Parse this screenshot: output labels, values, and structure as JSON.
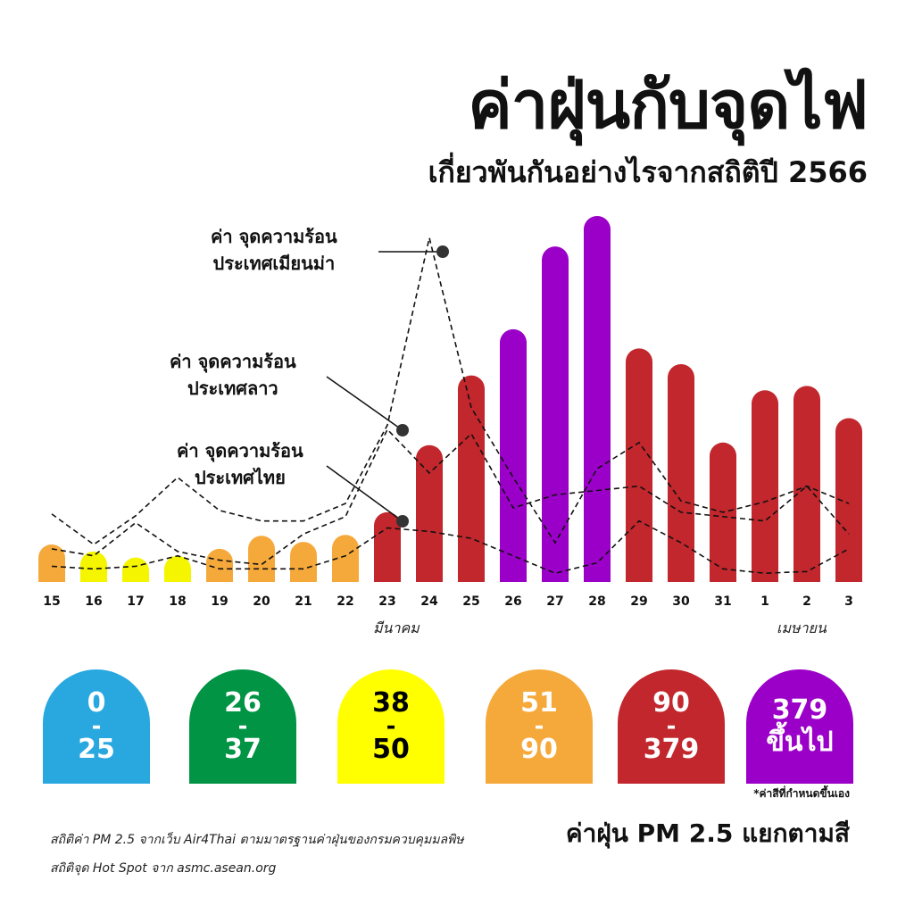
{
  "title": "ค่าฝุ่นกับจุดไฟ",
  "subtitle": "เกี่ยวพันกันอย่างไรจากสถิติปี 2566",
  "chart_data": {
    "type": "bar",
    "categories": [
      "15",
      "16",
      "17",
      "18",
      "19",
      "20",
      "21",
      "22",
      "23",
      "24",
      "25",
      "26",
      "27",
      "28",
      "29",
      "30",
      "31",
      "1",
      "2",
      "3"
    ],
    "months": [
      {
        "label": "มีนาคม",
        "after_index": 8
      },
      {
        "label": "เมษายน",
        "after_index": 19
      }
    ],
    "values": [
      43,
      35,
      28,
      30,
      38,
      53,
      46,
      54,
      80,
      157,
      237,
      290,
      385,
      420,
      268,
      250,
      160,
      220,
      225,
      188
    ],
    "bar_colors": [
      "#f6a93b",
      "#f5f500",
      "#f5f500",
      "#f5f500",
      "#f6a93b",
      "#f6a93b",
      "#f6a93b",
      "#f6a93b",
      "#c1272d",
      "#c1272d",
      "#c1272d",
      "#9b00c8",
      "#9b00c8",
      "#9b00c8",
      "#c1272d",
      "#c1272d",
      "#c1272d",
      "#c1272d",
      "#c1272d",
      "#c1272d"
    ],
    "series": [
      {
        "name": "ค่า จุดความร้อน ประเทศเมียนม่า",
        "values": [
          78,
          43,
          76,
          120,
          82,
          70,
          70,
          90,
          180,
          395,
          200,
          120,
          45,
          130,
          160,
          93,
          80,
          92,
          110,
          90
        ]
      },
      {
        "name": "ค่า จุดความร้อน ประเทศลาว",
        "values": [
          38,
          30,
          68,
          35,
          25,
          20,
          55,
          75,
          175,
          125,
          170,
          85,
          100,
          105,
          110,
          80,
          75,
          70,
          110,
          55
        ]
      },
      {
        "name": "ค่า จุดความร้อน ประเทศไทย",
        "values": [
          18,
          15,
          18,
          30,
          15,
          15,
          15,
          30,
          62,
          58,
          50,
          30,
          10,
          22,
          70,
          45,
          15,
          10,
          12,
          38
        ]
      }
    ],
    "annotations": [
      {
        "line1": "ค่า จุดความร้อน",
        "line2": "ประเทศเมียนม่า"
      },
      {
        "line1": "ค่า จุดความร้อน",
        "line2": "ประเทศลาว"
      },
      {
        "line1": "ค่า จุดความร้อน",
        "line2": "ประเทศไทย"
      }
    ]
  },
  "legend": {
    "boxes": [
      {
        "top": "0",
        "bottom": "25",
        "color": "#29a8e0",
        "text_color": "#ffffff"
      },
      {
        "top": "26",
        "bottom": "37",
        "color": "#009444",
        "text_color": "#ffffff"
      },
      {
        "top": "38",
        "bottom": "50",
        "color": "#ffff00",
        "text_color": "#000000"
      },
      {
        "top": "51",
        "bottom": "90",
        "color": "#f6a93b",
        "text_color": "#ffffff"
      },
      {
        "top": "90",
        "bottom": "379",
        "color": "#c1272d",
        "text_color": "#ffffff"
      },
      {
        "top": "379",
        "bottom": "ขึ้นไป",
        "color": "#9b00c8",
        "text_color": "#ffffff"
      }
    ],
    "note": "*ค่าสีที่กำหนดขึ้นเอง",
    "title": "ค่าฝุ่น PM 2.5 แยกตามสี"
  },
  "sources": {
    "line1": "สถิติค่า PM 2.5 จากเว็บ Air4Thai ตามมาตรฐานค่าฝุ่นของกรมควบคุมมลพิษ",
    "line2": "สถิติจุด Hot Spot จาก asmc.asean.org"
  }
}
